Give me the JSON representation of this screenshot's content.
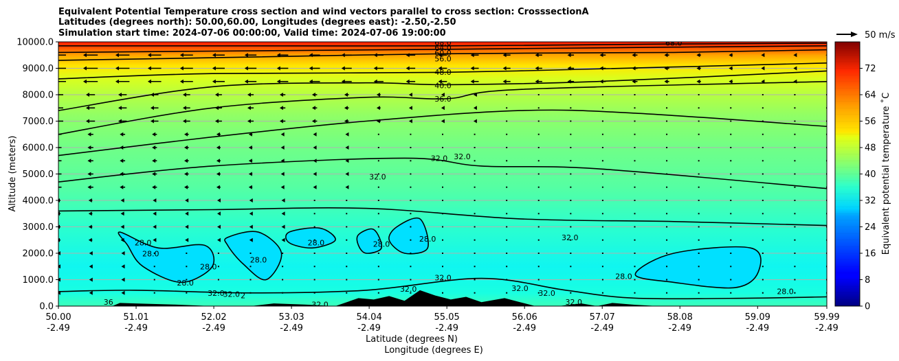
{
  "chart_data": {
    "type": "heatmap",
    "title_lines": [
      "Equivalent Potential Temperature cross section and wind vectors parallel to cross section: CrosssectionA",
      "Latitudes (degrees north): 50.00,60.00, Longitudes (degrees east): -2.50,-2.50",
      "Simulation start time: 2024-07-06 00:00:00, Valid time: 2024-07-06 19:00:00"
    ],
    "ylabel": "Altitude (meters)",
    "xlabel_lines": [
      "Latitude (degrees N)",
      "Longitude (degrees E)"
    ],
    "ylim": [
      0,
      10000
    ],
    "xlim": [
      50.0,
      59.99
    ],
    "y_ticks": [
      0,
      1000,
      2000,
      3000,
      4000,
      5000,
      6000,
      7000,
      8000,
      9000,
      10000
    ],
    "y_tick_labels": [
      "0.0",
      "1000.0",
      "2000.0",
      "3000.0",
      "4000.0",
      "5000.0",
      "6000.0",
      "7000.0",
      "8000.0",
      "9000.0",
      "10000.0"
    ],
    "x_ticks": [
      50.0,
      51.01,
      52.02,
      53.03,
      54.04,
      55.05,
      56.06,
      57.07,
      58.08,
      59.09,
      59.99
    ],
    "x_tick_labels": [
      "50.00",
      "51.01",
      "52.02",
      "53.03",
      "54.04",
      "55.05",
      "56.06",
      "57.07",
      "58.08",
      "59.09",
      "59.99"
    ],
    "x_tick_labels_lon": [
      "-2.49",
      "-2.49",
      "-2.49",
      "-2.49",
      "-2.49",
      "-2.49",
      "-2.49",
      "-2.49",
      "-2.49",
      "-2.49",
      "-2.49"
    ],
    "grid": "horizontal",
    "colorbar": {
      "label": "Equivalent potential temperature ˚C",
      "min": 0,
      "max": 80,
      "ticks": [
        0,
        8,
        16,
        24,
        32,
        40,
        48,
        56,
        64,
        72
      ],
      "tick_labels": [
        "0",
        "8",
        "16",
        "24",
        "32",
        "40",
        "48",
        "56",
        "64",
        "72"
      ],
      "colormap": "jet"
    },
    "quiver_key": {
      "label": "50 m/s",
      "value": 50
    },
    "field_levels": [
      {
        "alt": 0,
        "value": 35
      },
      {
        "alt": 1000,
        "value": 31
      },
      {
        "alt": 2000,
        "value": 30
      },
      {
        "alt": 3000,
        "value": 32
      },
      {
        "alt": 4000,
        "value": 35
      },
      {
        "alt": 5000,
        "value": 37
      },
      {
        "alt": 6000,
        "value": 38
      },
      {
        "alt": 7000,
        "value": 40
      },
      {
        "alt": 8000,
        "value": 42
      },
      {
        "alt": 9000,
        "value": 50
      },
      {
        "alt": 10000,
        "value": 72
      }
    ],
    "contour_lines": [
      {
        "level": 36,
        "points": [
          [
            50.0,
            3600
          ],
          [
            52.0,
            3650
          ],
          [
            54.0,
            3700
          ],
          [
            56.0,
            3300
          ],
          [
            58.0,
            3200
          ],
          [
            59.99,
            3050
          ]
        ]
      },
      {
        "level": 32,
        "points": [
          [
            50.0,
            4700
          ],
          [
            52.0,
            5300
          ],
          [
            54.5,
            5600
          ],
          [
            55.5,
            5300
          ],
          [
            57.0,
            5200
          ],
          [
            59.99,
            4450
          ]
        ]
      },
      {
        "level": 36,
        "points": [
          [
            50.0,
            5700
          ],
          [
            52.0,
            6400
          ],
          [
            54.0,
            7000
          ],
          [
            56.0,
            7400
          ],
          [
            57.5,
            7300
          ],
          [
            59.99,
            6800
          ]
        ]
      },
      {
        "level": 36,
        "points": [
          [
            50.0,
            6500
          ],
          [
            52.0,
            7500
          ],
          [
            54.0,
            7900
          ],
          [
            55.05,
            7850
          ],
          [
            56.0,
            8200
          ],
          [
            59.99,
            8500
          ]
        ]
      },
      {
        "level": 40,
        "points": [
          [
            50.0,
            7400
          ],
          [
            52.0,
            8300
          ],
          [
            54.0,
            8450
          ],
          [
            55.05,
            8380
          ],
          [
            57.0,
            8500
          ],
          [
            59.99,
            8900
          ]
        ]
      },
      {
        "level": 48,
        "points": [
          [
            50.0,
            8600
          ],
          [
            52.0,
            8800
          ],
          [
            55.05,
            8850
          ],
          [
            58.0,
            9050
          ],
          [
            59.99,
            9200
          ]
        ]
      },
      {
        "level": 56,
        "points": [
          [
            50.0,
            9300
          ],
          [
            52.0,
            9400
          ],
          [
            55.05,
            9550
          ],
          [
            58.0,
            9600
          ],
          [
            59.99,
            9700
          ]
        ]
      },
      {
        "level": 60,
        "points": [
          [
            50.0,
            9600
          ],
          [
            52.0,
            9650
          ],
          [
            55.05,
            9720
          ],
          [
            58.0,
            9800
          ],
          [
            59.99,
            9850
          ]
        ]
      },
      {
        "level": 64,
        "points": [
          [
            50.0,
            9850
          ],
          [
            52.0,
            9850
          ],
          [
            55.05,
            9850
          ],
          [
            58.0,
            9920
          ],
          [
            59.99,
            9950
          ]
        ]
      },
      {
        "level": 32,
        "points": [
          [
            50.0,
            550
          ],
          [
            51.0,
            600
          ],
          [
            52.5,
            500
          ],
          [
            54.0,
            600
          ],
          [
            55.5,
            1050
          ],
          [
            56.6,
            600
          ],
          [
            57.5,
            300
          ],
          [
            59.0,
            300
          ],
          [
            59.99,
            350
          ]
        ]
      }
    ],
    "closed_regions": [
      {
        "level": 28,
        "points": [
          [
            50.8,
            2800
          ],
          [
            51.3,
            2200
          ],
          [
            51.9,
            2300
          ],
          [
            52.0,
            1500
          ],
          [
            51.6,
            900
          ],
          [
            51.1,
            1500
          ],
          [
            50.9,
            2300
          ]
        ]
      },
      {
        "level": 28,
        "points": [
          [
            52.2,
            2600
          ],
          [
            52.6,
            2800
          ],
          [
            52.9,
            2000
          ],
          [
            52.7,
            1000
          ],
          [
            52.4,
            1600
          ],
          [
            52.2,
            2300
          ]
        ]
      },
      {
        "level": 28,
        "points": [
          [
            53.0,
            2800
          ],
          [
            53.4,
            2950
          ],
          [
            53.6,
            2500
          ],
          [
            53.3,
            2200
          ],
          [
            53.0,
            2400
          ]
        ]
      },
      {
        "level": 28,
        "points": [
          [
            53.9,
            2700
          ],
          [
            54.1,
            2900
          ],
          [
            54.2,
            2200
          ],
          [
            54.0,
            2000
          ],
          [
            53.9,
            2300
          ]
        ]
      },
      {
        "level": 28,
        "points": [
          [
            54.4,
            3000
          ],
          [
            54.7,
            3300
          ],
          [
            54.8,
            2200
          ],
          [
            54.5,
            2000
          ],
          [
            54.3,
            2500
          ]
        ]
      },
      {
        "level": 28,
        "points": [
          [
            57.5,
            1200
          ],
          [
            58.0,
            2000
          ],
          [
            59.0,
            2200
          ],
          [
            59.1,
            1300
          ],
          [
            58.8,
            700
          ],
          [
            58.0,
            900
          ]
        ]
      }
    ],
    "contour_labels": [
      {
        "text": "68.0",
        "lat": 55.0,
        "alt": 9970
      },
      {
        "text": "64.0",
        "lat": 55.0,
        "alt": 9780
      },
      {
        "text": "60.0",
        "lat": 55.0,
        "alt": 9590
      },
      {
        "text": "56.0",
        "lat": 55.0,
        "alt": 9370
      },
      {
        "text": "48.0",
        "lat": 55.0,
        "alt": 8860
      },
      {
        "text": "40.0",
        "lat": 55.0,
        "alt": 8350
      },
      {
        "text": "36.0",
        "lat": 55.0,
        "alt": 7850
      },
      {
        "text": "68.0",
        "lat": 58.0,
        "alt": 9960
      },
      {
        "text": "32.0",
        "lat": 54.95,
        "alt": 5600
      },
      {
        "text": "32.0",
        "lat": 55.25,
        "alt": 5660
      },
      {
        "text": "32.0",
        "lat": 54.15,
        "alt": 4900
      },
      {
        "text": "32.0",
        "lat": 56.65,
        "alt": 2600
      },
      {
        "text": "28.0",
        "lat": 51.1,
        "alt": 2400
      },
      {
        "text": "28.0",
        "lat": 51.2,
        "alt": 1990
      },
      {
        "text": "28.0",
        "lat": 51.95,
        "alt": 1500
      },
      {
        "text": "28.0",
        "lat": 52.6,
        "alt": 1750
      },
      {
        "text": "28.0",
        "lat": 51.65,
        "alt": 880
      },
      {
        "text": "28.0",
        "lat": 53.35,
        "alt": 2400
      },
      {
        "text": "28.0",
        "lat": 54.2,
        "alt": 2350
      },
      {
        "text": "28.0",
        "lat": 54.8,
        "alt": 2550
      },
      {
        "text": "32.0",
        "lat": 55.0,
        "alt": 1080
      },
      {
        "text": "32.0",
        "lat": 54.55,
        "alt": 650
      },
      {
        "text": "32.0",
        "lat": 56.0,
        "alt": 680
      },
      {
        "text": "32.0",
        "lat": 56.35,
        "alt": 500
      },
      {
        "text": "32.0",
        "lat": 56.7,
        "alt": 150
      },
      {
        "text": "28.0",
        "lat": 57.35,
        "alt": 1130
      },
      {
        "text": "28.0",
        "lat": 59.45,
        "alt": 560
      },
      {
        "text": "36",
        "lat": 50.65,
        "alt": 150
      },
      {
        "text": "32.0",
        "lat": 52.05,
        "alt": 500
      },
      {
        "text": "32.0",
        "lat": 52.25,
        "alt": 450
      },
      {
        "text": "32.0",
        "lat": 53.4,
        "alt": 70
      },
      {
        "text": "2",
        "lat": 52.4,
        "alt": 400
      }
    ],
    "terrain": [
      [
        50.0,
        0
      ],
      [
        50.7,
        0
      ],
      [
        50.8,
        120
      ],
      [
        51.0,
        100
      ],
      [
        51.5,
        60
      ],
      [
        52.0,
        0
      ],
      [
        52.5,
        0
      ],
      [
        52.8,
        100
      ],
      [
        53.2,
        60
      ],
      [
        53.6,
        0
      ],
      [
        53.9,
        300
      ],
      [
        54.1,
        250
      ],
      [
        54.3,
        380
      ],
      [
        54.5,
        200
      ],
      [
        54.7,
        600
      ],
      [
        54.9,
        400
      ],
      [
        55.1,
        250
      ],
      [
        55.3,
        350
      ],
      [
        55.5,
        150
      ],
      [
        55.8,
        300
      ],
      [
        56.0,
        150
      ],
      [
        56.2,
        0
      ],
      [
        56.5,
        0
      ],
      [
        56.8,
        100
      ],
      [
        57.0,
        0
      ],
      [
        57.2,
        120
      ],
      [
        57.5,
        50
      ],
      [
        57.8,
        0
      ],
      [
        59.99,
        0
      ]
    ],
    "wind_vectors_note": "westward arrows aloft, dots elsewhere"
  }
}
